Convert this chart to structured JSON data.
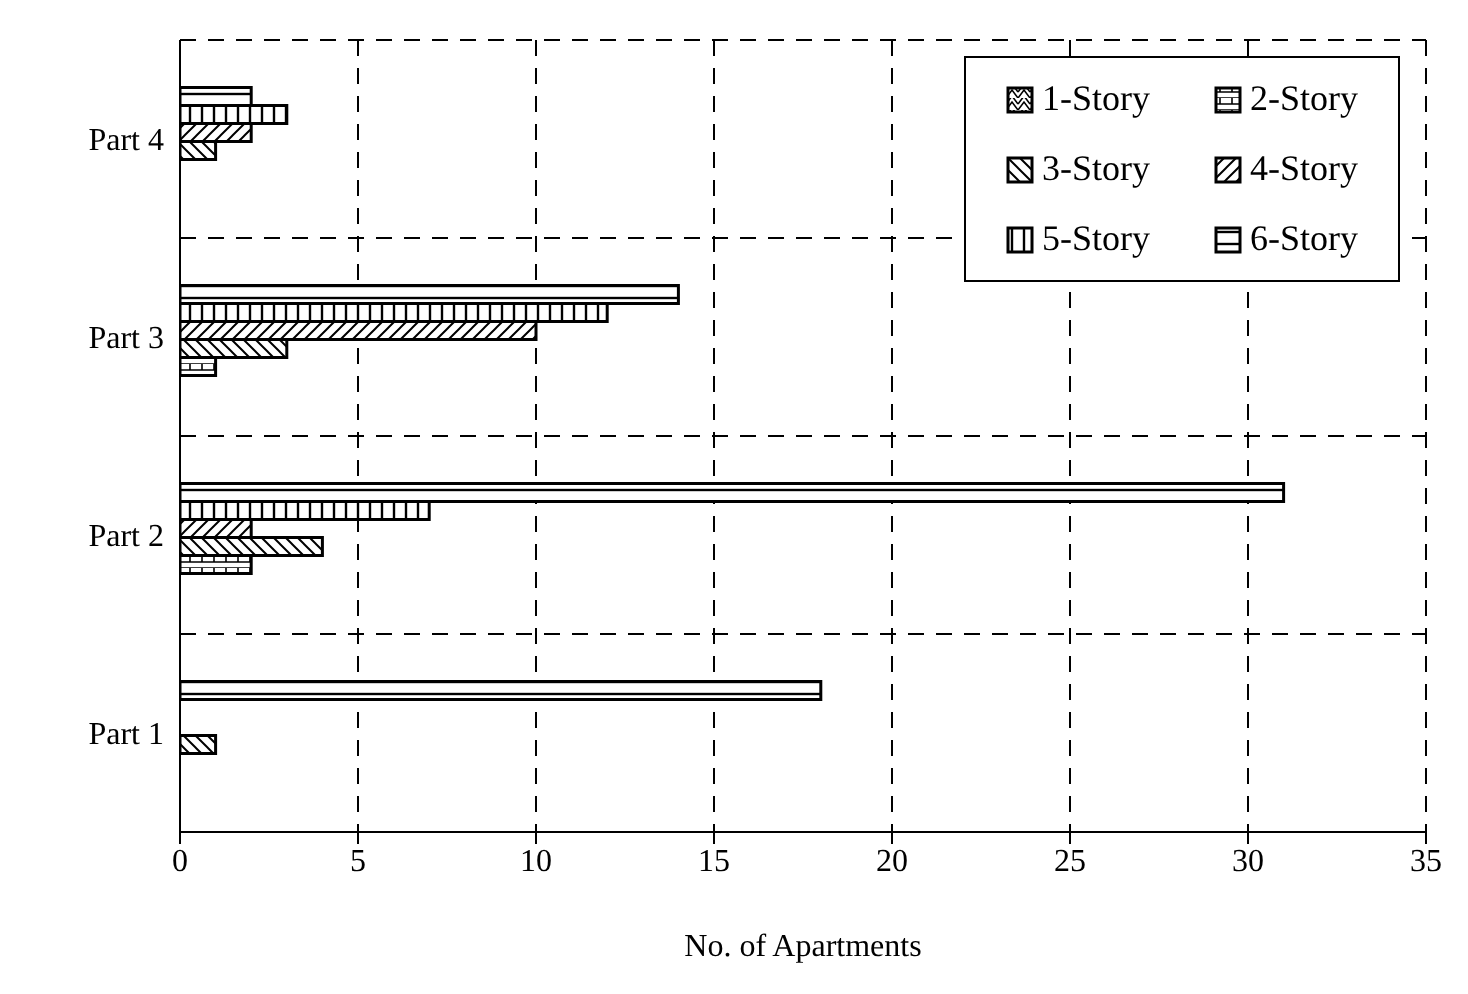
{
  "chart_data": {
    "type": "bar",
    "orientation": "horizontal",
    "xlabel": "No. of Apartments",
    "categories": [
      "Part 4",
      "Part 3",
      "Part 2",
      "Part 1"
    ],
    "series": [
      {
        "name": "1-Story",
        "color": "#000000",
        "values": [
          0,
          0,
          0,
          0
        ]
      },
      {
        "name": "2-Story",
        "color": "#000000",
        "values": [
          0,
          1,
          2,
          0
        ]
      },
      {
        "name": "3-Story",
        "color": "#000000",
        "values": [
          1,
          3,
          4,
          1
        ]
      },
      {
        "name": "4-Story",
        "color": "#000000",
        "values": [
          2,
          10,
          2,
          0
        ]
      },
      {
        "name": "5-Story",
        "color": "#000000",
        "values": [
          3,
          12,
          7,
          0
        ]
      },
      {
        "name": "6-Story",
        "color": "#000000",
        "values": [
          2,
          14,
          31,
          18
        ]
      }
    ],
    "xlim": [
      0,
      35
    ],
    "xticks": [
      0,
      5,
      10,
      15,
      20,
      25,
      30,
      35
    ],
    "grid": true,
    "legend": "top right"
  }
}
